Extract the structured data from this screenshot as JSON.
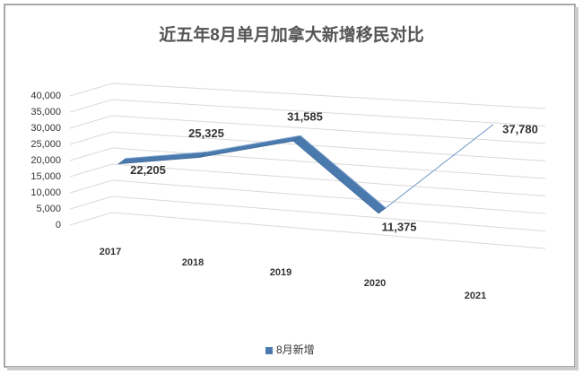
{
  "chart_data": {
    "type": "line3d",
    "title": "近五年8月单月加拿大新增移民对比",
    "categories": [
      "2017",
      "2018",
      "2019",
      "2020",
      "2021"
    ],
    "series": [
      {
        "name": "8月新增",
        "color": "#4a79ad",
        "values": [
          22205,
          25325,
          31585,
          11375,
          37780
        ],
        "value_labels": [
          "22,205",
          "25,325",
          "31,585",
          "11,375",
          "37,780"
        ]
      }
    ],
    "ylim": [
      0,
      40000
    ],
    "yticks": [
      0,
      {
        "value": 5000,
        "label": "5,000"
      },
      {
        "value": 10000,
        "label": "10,000"
      },
      {
        "value": 15000,
        "label": "15,000"
      },
      {
        "value": 20000,
        "label": "20,000"
      },
      {
        "value": 25000,
        "label": "25,000"
      },
      {
        "value": 30000,
        "label": "30,000"
      },
      {
        "value": 35000,
        "label": "35,000"
      },
      {
        "value": 40000,
        "label": "40,000"
      }
    ],
    "grid": true
  }
}
